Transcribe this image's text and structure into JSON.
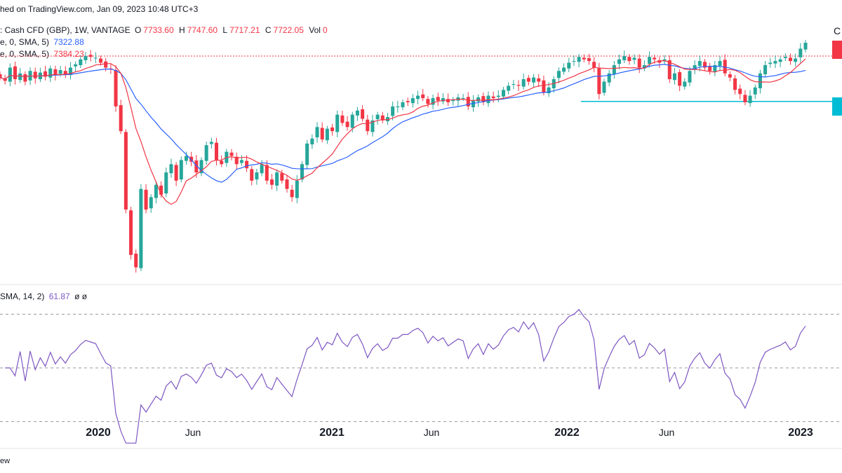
{
  "header": {
    "published": "hed on TradingView.com, Jan 09, 2023 10:48 UTC+3",
    "symbol": ": Cash CFD (GBP), 1W, VANTAGE",
    "ohlc": {
      "o_label": "O",
      "o": "7733.60",
      "h_label": "H",
      "h": "7747.60",
      "l_label": "L",
      "l": "7717.21",
      "c_label": "C",
      "c": "7722.05",
      "vol_label": "Vol",
      "vol": "0"
    },
    "ma1": {
      "label": "e, 0, SMA, 5)",
      "value": "7322.88",
      "color": "#2962ff"
    },
    "ma2": {
      "label": "e, 0, SMA, 5)",
      "value": "7384.23",
      "color": "#f23645"
    },
    "rsi_label": "SMA, 14, 2)",
    "rsi_value": "61.87",
    "rsi_extra": "ø ø",
    "top_right_letter": "C",
    "footer": "ew"
  },
  "colors": {
    "up": "#26a69a",
    "down": "#f23645",
    "ma_fast": "#f23645",
    "ma_slow": "#2962ff",
    "rsi": "#7e57c2",
    "support": "#00bcd4",
    "resistance": "#f23645"
  },
  "chart_data": {
    "type": "candlestick",
    "x_axis_labels": [
      {
        "label": "2020",
        "year": true
      },
      {
        "label": "Jun",
        "year": false
      },
      {
        "label": "2021",
        "year": true
      },
      {
        "label": "Jun",
        "year": false
      },
      {
        "label": "2022",
        "year": true
      },
      {
        "label": "Jun",
        "year": false
      },
      {
        "label": "2023",
        "year": true
      }
    ],
    "resistance_level": 7560,
    "support_level": 7010,
    "rsi_bands": [
      70,
      50,
      30
    ],
    "ylim": [
      4800,
      7900
    ],
    "rsi_ylim": [
      20,
      80
    ],
    "closes": [
      7300,
      7260,
      7420,
      7280,
      7350,
      7250,
      7380,
      7290,
      7360,
      7310,
      7410,
      7330,
      7390,
      7340,
      7420,
      7460,
      7520,
      7560,
      7550,
      7540,
      7480,
      7420,
      7400,
      6950,
      6650,
      5700,
      5150,
      5000,
      5950,
      5700,
      5850,
      6000,
      5880,
      6150,
      6250,
      6050,
      6300,
      6350,
      6280,
      6150,
      6300,
      6480,
      6520,
      6300,
      6250,
      6400,
      6350,
      6250,
      6300,
      6200,
      6050,
      6150,
      6250,
      6050,
      6000,
      6150,
      6050,
      5950,
      5850,
      6050,
      6250,
      6500,
      6560,
      6700,
      6550,
      6680,
      6650,
      6850,
      6750,
      6700,
      6850,
      6900,
      6800,
      6650,
      6780,
      6850,
      6780,
      6820,
      6950,
      6950,
      7000,
      7000,
      7050,
      7080,
      7050,
      6980,
      7050,
      7020,
      7050,
      7000,
      7030,
      7060,
      7050,
      6950,
      7020,
      7060,
      7000,
      7080,
      7050,
      7080,
      7150,
      7200,
      7220,
      7200,
      7280,
      7250,
      7300,
      7250,
      7120,
      7180,
      7280,
      7380,
      7420,
      7480,
      7500,
      7550,
      7520,
      7500,
      7420,
      7100,
      7250,
      7350,
      7450,
      7520,
      7560,
      7500,
      7540,
      7420,
      7450,
      7550,
      7520,
      7480,
      7520,
      7280,
      7350,
      7200,
      7250,
      7380,
      7450,
      7500,
      7420,
      7380,
      7450,
      7500,
      7350,
      7300,
      7150,
      7100,
      7000,
      7080,
      7180,
      7350,
      7450,
      7480,
      7500,
      7520,
      7550,
      7500,
      7530,
      7650,
      7722
    ]
  }
}
